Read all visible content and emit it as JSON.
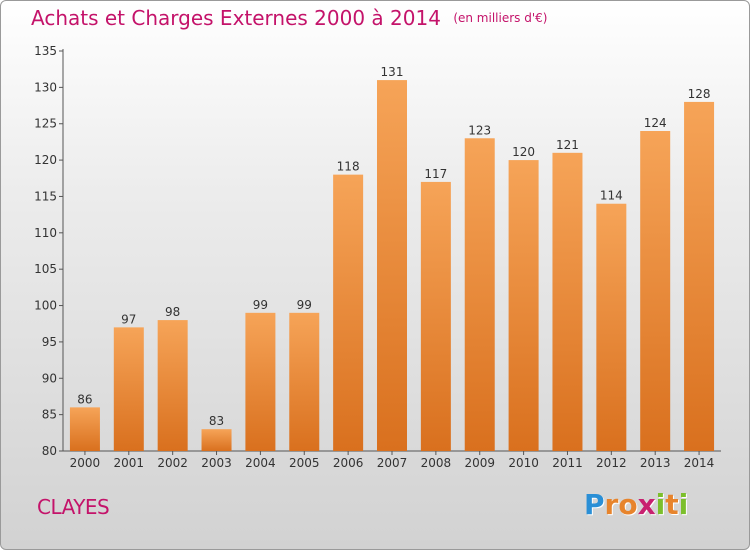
{
  "chart_data": {
    "type": "bar",
    "title": "Achats et Charges Externes 2000 à 2014",
    "subtitle": "(en milliers d'€)",
    "categories": [
      "2000",
      "2001",
      "2002",
      "2003",
      "2004",
      "2005",
      "2006",
      "2007",
      "2008",
      "2009",
      "2010",
      "2011",
      "2012",
      "2013",
      "2014"
    ],
    "values": [
      86,
      97,
      98,
      83,
      99,
      99,
      118,
      131,
      117,
      123,
      120,
      121,
      114,
      124,
      128
    ],
    "data_labels": [
      "86",
      "97",
      "98",
      "83",
      "99",
      "99",
      "118",
      "131",
      "117",
      "123",
      "120",
      "121",
      "114",
      "124",
      "128"
    ],
    "ylim": [
      80,
      135
    ],
    "yticks": [
      "80",
      "85",
      "90",
      "95",
      "100",
      "105",
      "110",
      "115",
      "120",
      "125",
      "130",
      "135"
    ],
    "grid": false,
    "bar_color": "#ef8e3a"
  },
  "footer": {
    "commune": "CLAYES",
    "logo": {
      "letters": [
        "P",
        "r",
        "o",
        "x",
        "i",
        "t",
        "i"
      ],
      "colors": [
        "#2a8fd6",
        "#e7842c",
        "#e7842c",
        "#c8206f",
        "#7cbf2c",
        "#e7842c",
        "#7cbf2c"
      ]
    }
  },
  "colors": {
    "accent": "#c4136a"
  }
}
